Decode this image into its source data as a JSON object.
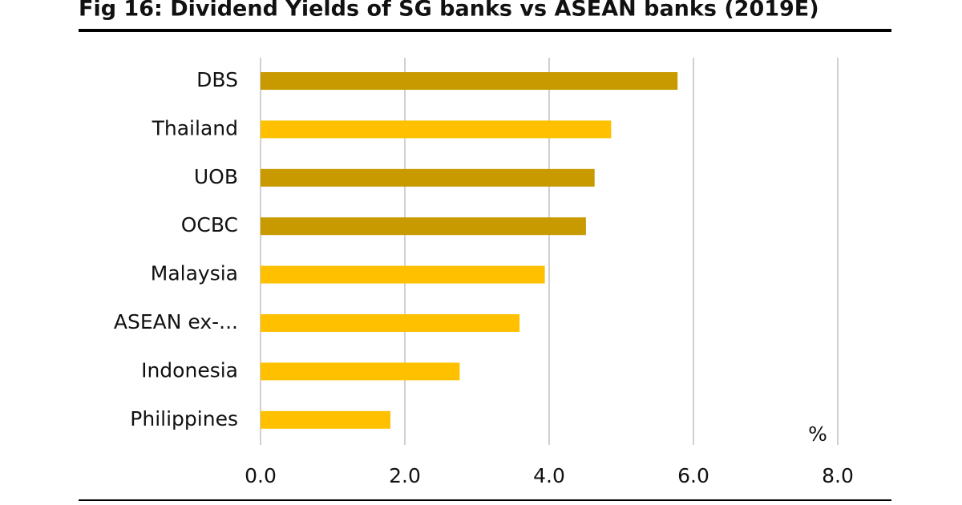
{
  "chart_data": {
    "type": "hbar",
    "title": "Fig 16: Dividend Yields of SG banks vs ASEAN banks (2019E)",
    "categories": [
      "DBS",
      "Thailand",
      "UOB",
      "OCBC",
      "Malaysia",
      "ASEAN ex-...",
      "Indonesia",
      "Philippines"
    ],
    "values": [
      5.78,
      4.86,
      4.63,
      4.51,
      3.94,
      3.59,
      2.76,
      1.8
    ],
    "colors": [
      "#c99a00",
      "#ffc000",
      "#c99a00",
      "#c99a00",
      "#ffc000",
      "#ffc000",
      "#ffc000",
      "#ffc000"
    ],
    "xlim": [
      0,
      8
    ],
    "xticks": [
      {
        "value": 0,
        "label": "0.0"
      },
      {
        "value": 2,
        "label": "2.0"
      },
      {
        "value": 4,
        "label": "4.0"
      },
      {
        "value": 6,
        "label": "6.0"
      },
      {
        "value": 8,
        "label": "8.0"
      }
    ],
    "unit_label": "%",
    "grid": true
  }
}
